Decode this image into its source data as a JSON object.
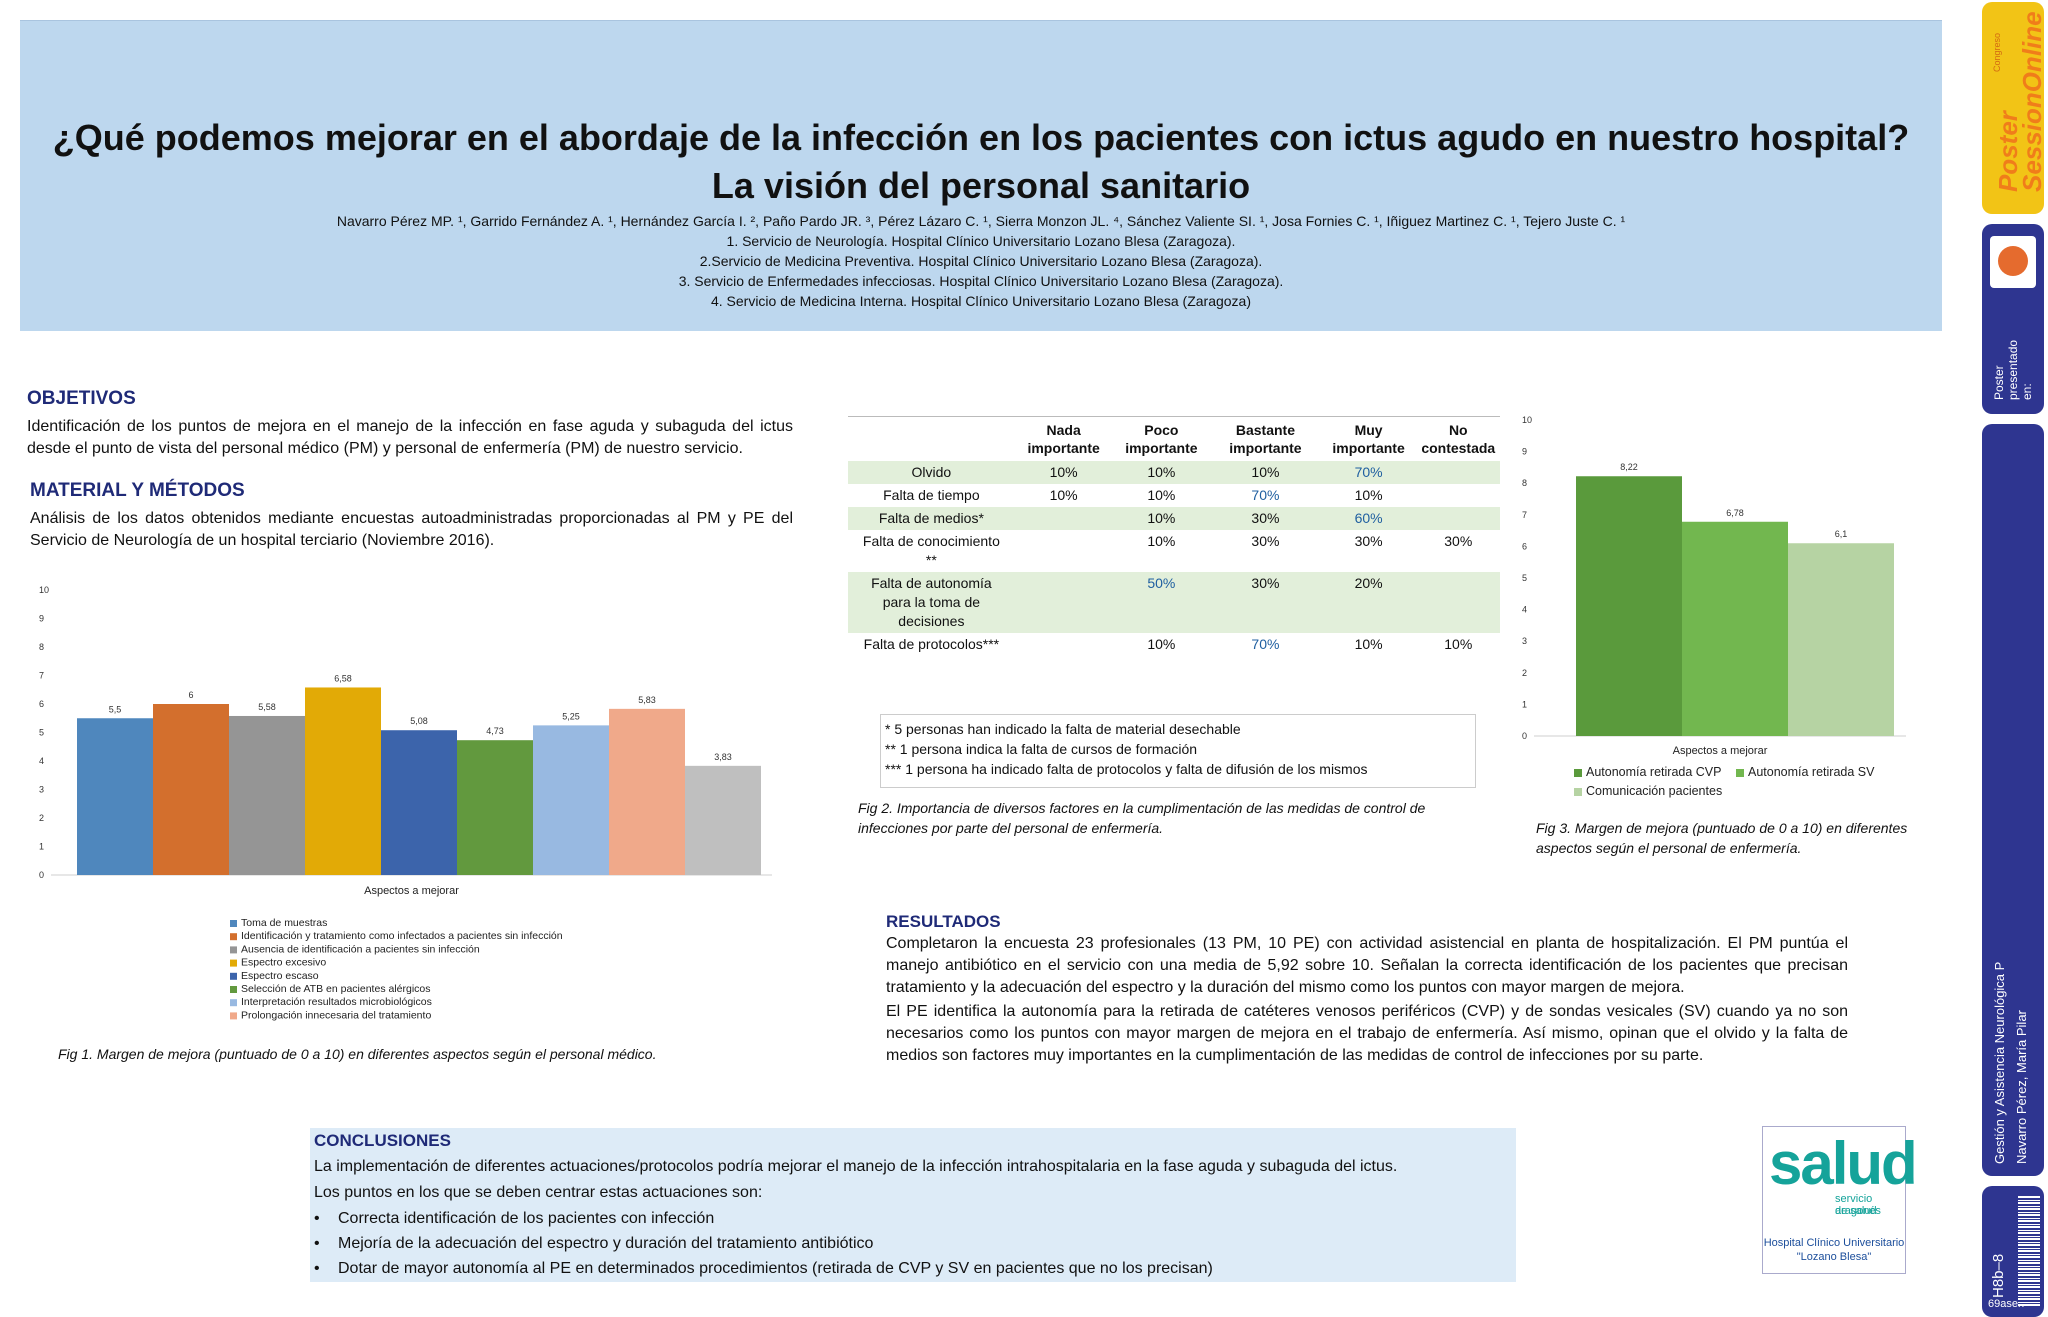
{
  "header": {
    "title_line1": "¿Qué podemos mejorar en el abordaje de la infección en los pacientes con ictus agudo en nuestro hospital?",
    "title_line2": "La visión del personal sanitario",
    "authors": "Navarro Pérez MP. ¹, Garrido Fernández A. ¹, Hernández García I. ², Paño Pardo JR. ³, Pérez Lázaro C. ¹, Sierra Monzon JL. ⁴, Sánchez Valiente SI. ¹, Josa Fornies C. ¹, Iñiguez Martinez C. ¹, Tejero Juste C. ¹",
    "affiliations": [
      "1. Servicio de Neurología. Hospital Clínico Universitario Lozano Blesa (Zaragoza).",
      "2.Servicio de Medicina Preventiva. Hospital Clínico Universitario Lozano Blesa (Zaragoza).",
      "3. Servicio de Enfermedades infecciosas. Hospital Clínico Universitario Lozano Blesa (Zaragoza).",
      "4. Servicio de Medicina Interna. Hospital Clínico Universitario Lozano Blesa (Zaragoza)"
    ]
  },
  "objetivos": {
    "heading": "OBJETIVOS",
    "text": "Identificación de los puntos de mejora en el manejo de la infección en fase aguda y subaguda del ictus desde el punto de vista del personal médico (PM) y personal de enfermería (PM) de nuestro servicio."
  },
  "metodos": {
    "heading": "MATERIAL Y MÉTODOS",
    "text": "Análisis de los datos obtenidos mediante encuestas autoadministradas proporcionadas al PM y PE del Servicio de Neurología de un hospital terciario (Noviembre 2016)."
  },
  "chart_data": [
    {
      "type": "bar",
      "xlabel": "Aspectos a mejorar",
      "ylim": [
        0,
        10
      ],
      "yticks": [
        0,
        1,
        2,
        3,
        4,
        5,
        6,
        7,
        8,
        9,
        10
      ],
      "legend_position": "bottom",
      "series": [
        {
          "name": "Toma de muestras",
          "value": 5.5,
          "label": "5,5",
          "color": "#4f87bd"
        },
        {
          "name": "Identificación y tratamiento como infectados a pacientes sin infección",
          "value": 6,
          "label": "6",
          "color": "#d36f2d"
        },
        {
          "name": "Ausencia de identificación a pacientes sin infección",
          "value": 5.58,
          "label": "5,58",
          "color": "#959595"
        },
        {
          "name": "Espectro excesivo",
          "value": 6.58,
          "label": "6,58",
          "color": "#e2aa06"
        },
        {
          "name": "Espectro escaso",
          "value": 5.08,
          "label": "5,08",
          "color": "#3c64ab"
        },
        {
          "name": "Selección de ATB en pacientes alérgicos",
          "value": 4.73,
          "label": "4,73",
          "color": "#62993e"
        },
        {
          "name": "Interpretación resultados microbiológicos",
          "value": 5.25,
          "label": "5,25",
          "color": "#98b9e1"
        },
        {
          "name": "Prolongación innecesaria del tratamiento",
          "value": 5.83,
          "label": "5,83",
          "color": "#f0a98a"
        },
        {
          "name": "",
          "value": 3.83,
          "label": "3,83",
          "color": "#bfbfbf"
        }
      ]
    },
    {
      "type": "bar",
      "xlabel": "Aspectos a mejorar",
      "ylim": [
        0,
        10
      ],
      "yticks": [
        0,
        1,
        2,
        3,
        4,
        5,
        6,
        7,
        8,
        9,
        10
      ],
      "legend_position": "bottom",
      "series": [
        {
          "name": "Autonomía retirada CVP",
          "value": 8.22,
          "label": "8,22",
          "color": "#5a9a3c"
        },
        {
          "name": "Autonomía retirada SV",
          "value": 6.78,
          "label": "6,78",
          "color": "#72b74f"
        },
        {
          "name": "Comunicación pacientes",
          "value": 6.1,
          "label": "6,1",
          "color": "#b6d3a3"
        }
      ]
    }
  ],
  "fig1_caption": "Fig 1. Margen de mejora (puntuado de 0 a 10) en diferentes aspectos según el personal médico.",
  "table": {
    "headers": [
      "",
      "Nada importante",
      "Poco importante",
      "Bastante importante",
      "Muy importante",
      "No contestada"
    ],
    "rows": [
      {
        "cells": [
          "Olvido",
          "10%",
          "10%",
          "10%",
          "70%",
          ""
        ],
        "hi": 4,
        "shade": true
      },
      {
        "cells": [
          "Falta de tiempo",
          "10%",
          "10%",
          "70%",
          "10%",
          ""
        ],
        "hi": 3,
        "shade": false
      },
      {
        "cells": [
          "Falta de medios*",
          "",
          "10%",
          "30%",
          "60%",
          ""
        ],
        "hi": 4,
        "shade": true
      },
      {
        "cells": [
          "Falta de conocimiento **",
          "",
          "10%",
          "30%",
          "30%",
          "30%"
        ],
        "hi": -1,
        "shade": false
      },
      {
        "cells": [
          "Falta de autonomía para la toma de decisiones",
          "",
          "50%",
          "30%",
          "20%",
          ""
        ],
        "hi": 2,
        "shade": true
      },
      {
        "cells": [
          "Falta de protocolos***",
          "",
          "10%",
          "70%",
          "10%",
          "10%"
        ],
        "hi": 3,
        "shade": false
      }
    ]
  },
  "notes": [
    "* 5 personas han indicado la falta de material desechable",
    "** 1 persona indica la falta de cursos de formación",
    "*** 1 persona ha indicado falta de protocolos y falta de difusión de los mismos"
  ],
  "fig2_caption": "Fig 2. Importancia de diversos factores en la cumplimentación de las medidas de control de infecciones por parte del personal de enfermería.",
  "fig3_caption": "Fig 3. Margen de mejora (puntuado de 0 a 10) en diferentes aspectos según el personal de enfermería.",
  "resultados": {
    "heading": "RESULTADOS",
    "p1": "Completaron la encuesta 23 profesionales (13 PM, 10 PE) con actividad asistencial en planta de hospitalización. El PM puntúa el manejo antibiótico en el servicio con una media de 5,92 sobre 10.  Señalan la correcta identificación de los pacientes que precisan tratamiento y la adecuación del espectro y la duración del mismo como los puntos con mayor margen de mejora.",
    "p2": "El PE identifica la autonomía para la retirada de catéteres venosos periféricos (CVP) y de sondas vesicales (SV) cuando ya no son necesarios como los puntos con mayor margen de mejora en el trabajo de enfermería. Así mismo, opinan que el olvido y la falta de medios son factores muy importantes en la cumplimentación de las medidas de control de infecciones por su parte."
  },
  "conclusiones": {
    "heading": "CONCLUSIONES",
    "line1": "La implementación de diferentes actuaciones/protocolos podría mejorar el manejo de la infección intrahospitalaria en la fase aguda y subaguda del ictus.",
    "line2": "Los puntos en los que se deben centrar estas actuaciones son:",
    "bullets": [
      "Correcta identificación de los pacientes con infección",
      "Mejoría de la adecuación del espectro y duración del tratamiento antibiótico",
      "Dotar de mayor autonomía al PE en determinados procedimientos (retirada de CVP y SV en pacientes que no los precisan)"
    ],
    "bullet_char": "•"
  },
  "salud_logo": {
    "word": "salud",
    "sub1": "servicio aragonés",
    "sub2": "de salud",
    "hospital1": "Hospital Clínico Universitario",
    "hospital2": "\"Lozano Blesa\""
  },
  "sidebar": {
    "brand_small": "Congreso",
    "brand_main1": "Poster",
    "brand_main2": "SessionOnline",
    "presented": [
      "Poster",
      "presentado",
      "en:"
    ],
    "area": "Gestión y Asistencia Neurológica P",
    "author": "Navarro Pérez, María Pilar",
    "code": "H8b–8",
    "id": "69asen"
  }
}
